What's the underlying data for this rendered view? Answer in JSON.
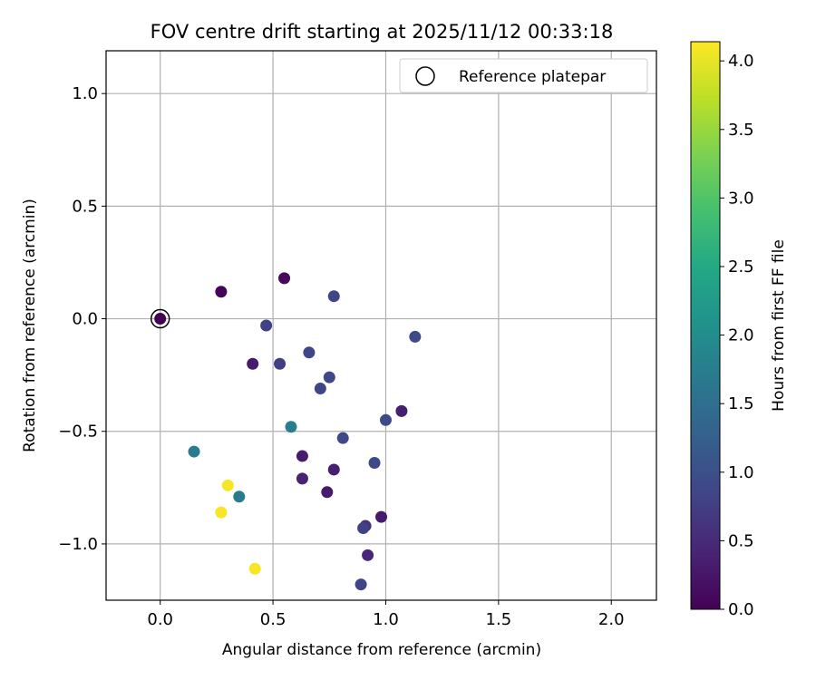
{
  "chart_data": {
    "type": "scatter",
    "title": "FOV centre drift starting at 2025/11/12 00:33:18",
    "xlabel": "Angular distance from reference (arcmin)",
    "ylabel": "Rotation from reference (arcmin)",
    "xlim": [
      -0.24,
      2.2
    ],
    "ylim": [
      -1.25,
      1.19
    ],
    "xticks": [
      0.0,
      0.5,
      1.0,
      1.5,
      2.0
    ],
    "xtick_labels": [
      "0.0",
      "0.5",
      "1.0",
      "1.5",
      "2.0"
    ],
    "yticks": [
      -1.0,
      -0.5,
      0.0,
      0.5,
      1.0
    ],
    "ytick_labels": [
      "−1.0",
      "−0.5",
      "0.0",
      "0.5",
      "1.0"
    ],
    "grid": true,
    "legend": {
      "position": "top-right",
      "entries": [
        "Reference platepar"
      ]
    },
    "reference": {
      "x": 0.0,
      "y": 0.0,
      "label": "Reference platepar"
    },
    "colorbar": {
      "label": "Hours from first FF file",
      "colormap": "viridis",
      "range": [
        0.0,
        4.14
      ],
      "ticks": [
        0.0,
        0.5,
        1.0,
        1.5,
        2.0,
        2.5,
        3.0,
        3.5,
        4.0
      ],
      "tick_labels": [
        "0.0",
        "0.5",
        "1.0",
        "1.5",
        "2.0",
        "2.5",
        "3.0",
        "3.5",
        "4.0"
      ]
    },
    "points": [
      {
        "x": 0.0,
        "y": 0.0,
        "c": 0.0
      },
      {
        "x": 0.27,
        "y": 0.12,
        "c": 0.05
      },
      {
        "x": 0.55,
        "y": 0.18,
        "c": 0.08
      },
      {
        "x": 0.41,
        "y": -0.2,
        "c": 0.3
      },
      {
        "x": 0.47,
        "y": -0.03,
        "c": 0.8
      },
      {
        "x": 0.53,
        "y": -0.2,
        "c": 0.75
      },
      {
        "x": 0.66,
        "y": -0.15,
        "c": 0.85
      },
      {
        "x": 0.77,
        "y": 0.1,
        "c": 0.85
      },
      {
        "x": 0.75,
        "y": -0.26,
        "c": 0.9
      },
      {
        "x": 0.71,
        "y": -0.31,
        "c": 0.85
      },
      {
        "x": 1.13,
        "y": -0.08,
        "c": 0.95
      },
      {
        "x": 1.07,
        "y": -0.41,
        "c": 0.35
      },
      {
        "x": 1.0,
        "y": -0.45,
        "c": 0.95
      },
      {
        "x": 0.81,
        "y": -0.53,
        "c": 0.9
      },
      {
        "x": 0.58,
        "y": -0.48,
        "c": 1.75
      },
      {
        "x": 0.15,
        "y": -0.59,
        "c": 1.7
      },
      {
        "x": 0.63,
        "y": -0.61,
        "c": 0.3
      },
      {
        "x": 0.77,
        "y": -0.67,
        "c": 0.35
      },
      {
        "x": 0.95,
        "y": -0.64,
        "c": 0.9
      },
      {
        "x": 0.63,
        "y": -0.71,
        "c": 0.4
      },
      {
        "x": 0.3,
        "y": -0.74,
        "c": 4.1
      },
      {
        "x": 0.35,
        "y": -0.79,
        "c": 1.7
      },
      {
        "x": 0.74,
        "y": -0.77,
        "c": 0.3
      },
      {
        "x": 0.27,
        "y": -0.86,
        "c": 4.1
      },
      {
        "x": 0.98,
        "y": -0.88,
        "c": 0.3
      },
      {
        "x": 0.91,
        "y": -0.92,
        "c": 0.6
      },
      {
        "x": 0.9,
        "y": -0.93,
        "c": 0.8
      },
      {
        "x": 0.92,
        "y": -1.05,
        "c": 0.45
      },
      {
        "x": 0.42,
        "y": -1.11,
        "c": 4.1
      },
      {
        "x": 0.89,
        "y": -1.18,
        "c": 0.85
      }
    ]
  }
}
